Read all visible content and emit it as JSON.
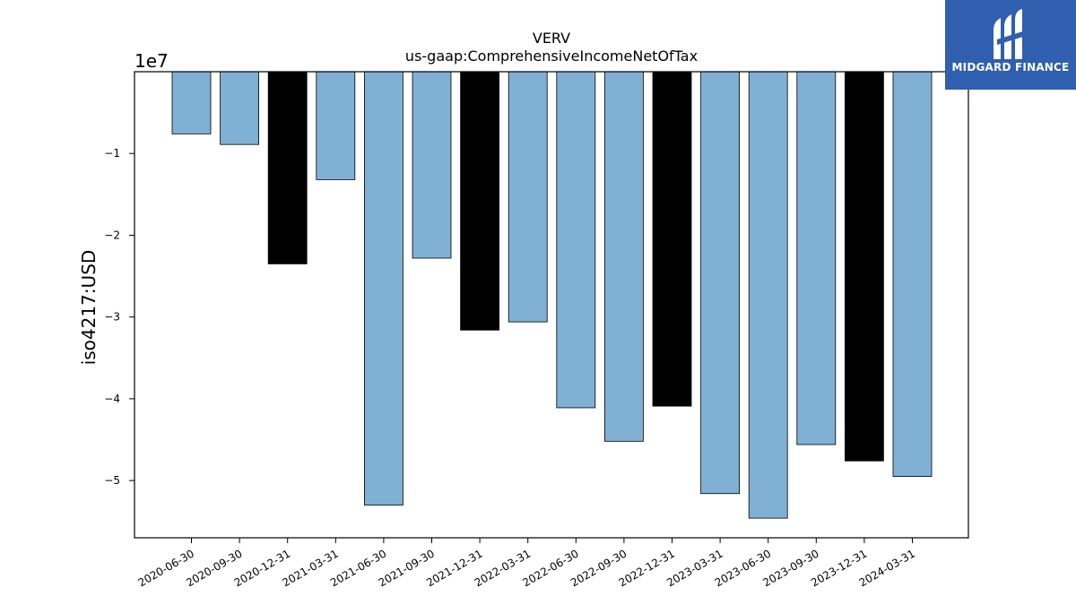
{
  "chart_data": {
    "type": "bar",
    "title": "VERV",
    "subtitle": "us-gaap:ComprehensiveIncomeNetOfTax",
    "ylabel": "iso4217:USD",
    "xlabel": "",
    "offset_label": "1e7",
    "ylim": [
      -57000000.0,
      0
    ],
    "yticks": [
      -10000000.0,
      -20000000.0,
      -30000000.0,
      -40000000.0,
      -50000000.0
    ],
    "ytick_labels": [
      "−1",
      "−2",
      "−3",
      "−4",
      "−5"
    ],
    "categories": [
      "2020-06-30",
      "2020-09-30",
      "2020-12-31",
      "2021-03-31",
      "2021-06-30",
      "2021-09-30",
      "2021-12-31",
      "2022-03-31",
      "2022-06-30",
      "2022-09-30",
      "2022-12-31",
      "2023-03-31",
      "2023-06-30",
      "2023-09-30",
      "2023-12-31",
      "2024-03-31"
    ],
    "values": [
      -7600000,
      -8900000,
      -23500000,
      -13200000,
      -53000000,
      -22800000,
      -31600000,
      -30600000,
      -41100000,
      -45200000,
      -40900000,
      -51600000,
      -54600000,
      -45600000,
      -47600000,
      -49500000
    ],
    "bar_colors": [
      "#80b0d4",
      "#80b0d4",
      "#000000",
      "#80b0d4",
      "#80b0d4",
      "#80b0d4",
      "#000000",
      "#80b0d4",
      "#80b0d4",
      "#80b0d4",
      "#000000",
      "#80b0d4",
      "#80b0d4",
      "#80b0d4",
      "#000000",
      "#80b0d4"
    ],
    "grid": false,
    "legend": "none"
  },
  "logo": {
    "text": "MIDGARD FINANCE",
    "background": "#2f5fae",
    "color": "#ffffff"
  }
}
